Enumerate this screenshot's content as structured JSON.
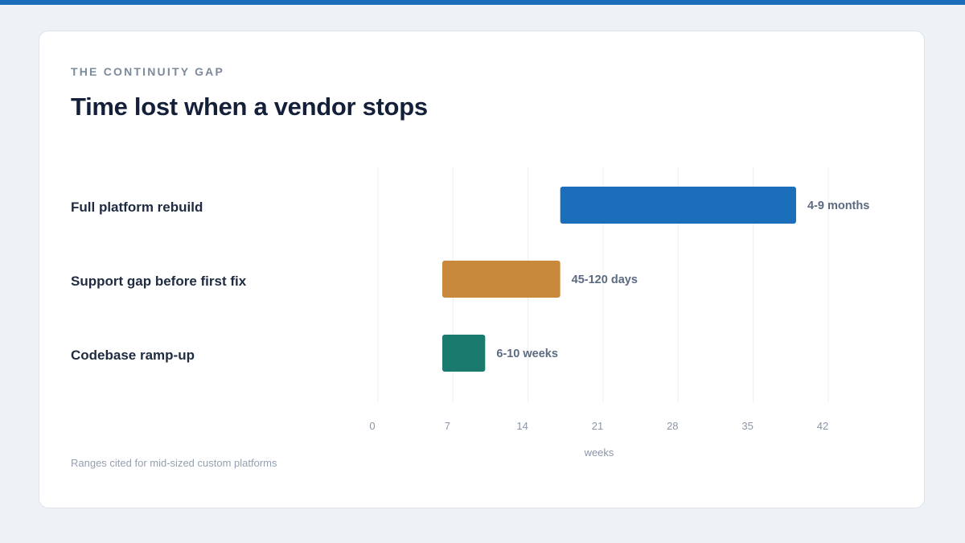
{
  "header": {
    "eyebrow": "THE CONTINUITY GAP",
    "title": "Time lost when a vendor stops"
  },
  "footnote": "Ranges cited for mid-sized custom platforms",
  "colors": {
    "accent_bar": "#1b6fba",
    "series": [
      "#1b6fba",
      "#c8893c",
      "#1a7a6e"
    ]
  },
  "chart_data": {
    "type": "bar",
    "orientation": "horizontal",
    "xlabel": "weeks",
    "xlim": [
      0,
      44
    ],
    "xticks": [
      0,
      7,
      14,
      21,
      28,
      35,
      42
    ],
    "grid": true,
    "categories": [
      "Full platform rebuild",
      "Support gap before first fix",
      "Codebase ramp-up"
    ],
    "ranges": [
      {
        "category": "Full platform rebuild",
        "start": 17,
        "end": 39,
        "label": "4-9 months"
      },
      {
        "category": "Support gap before first fix",
        "start": 6,
        "end": 17,
        "label": "45-120 days"
      },
      {
        "category": "Codebase ramp-up",
        "start": 6,
        "end": 10,
        "label": "6-10 weeks"
      }
    ]
  }
}
